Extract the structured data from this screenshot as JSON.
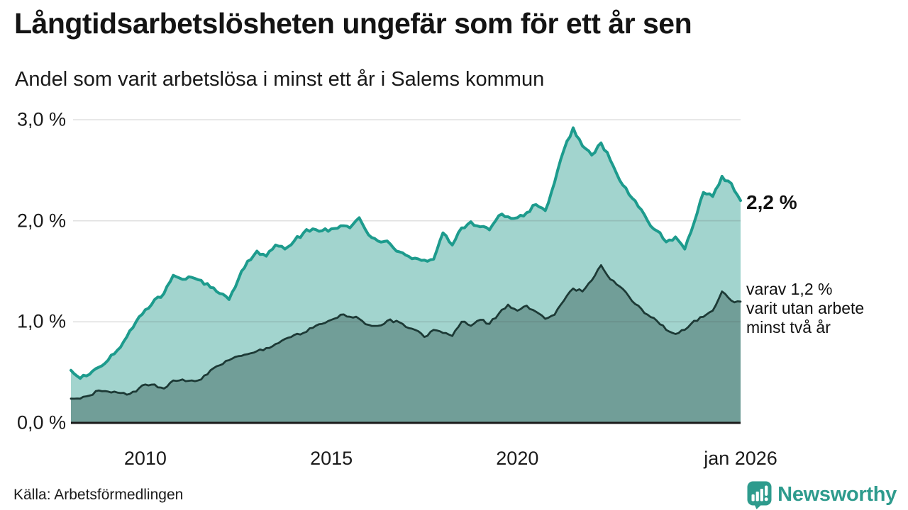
{
  "header": {
    "title": "Långtidsarbetslösheten ungefär som för ett år sen",
    "subtitle": "Andel som varit arbetslösa i minst ett år i Salems kommun"
  },
  "chart_data": {
    "type": "area",
    "title": "Långtidsarbetslösheten ungefär som för ett år sen",
    "subtitle": "Andel som varit arbetslösa i minst ett år i Salems kommun",
    "unit": "%",
    "x_start": 2008,
    "x_end": 2026,
    "x_step": 0.25,
    "ylim": [
      0,
      3.15
    ],
    "grid": "horizontal",
    "x_ticks": [
      {
        "year": 2010,
        "label": "2010"
      },
      {
        "year": 2015,
        "label": "2015"
      },
      {
        "year": 2020,
        "label": "2020"
      },
      {
        "year": 2026,
        "label": "jan 2026"
      }
    ],
    "y_ticks": [
      {
        "value": 3,
        "label": "3,0 %"
      },
      {
        "value": 2,
        "label": "2,0 %"
      },
      {
        "value": 1,
        "label": "1,0 %"
      },
      {
        "value": 0,
        "label": "0,0 %"
      }
    ],
    "series": [
      {
        "name": "Andel som varit arbetslösa i minst ett år",
        "line_color": "#1d9b8d",
        "fill_color": "#a2d4ce",
        "last_value_label": "2,2 %",
        "values": [
          0.52,
          0.44,
          0.48,
          0.55,
          0.62,
          0.72,
          0.85,
          1.0,
          1.12,
          1.22,
          1.28,
          1.46,
          1.42,
          1.44,
          1.41,
          1.34,
          1.28,
          1.22,
          1.42,
          1.6,
          1.7,
          1.65,
          1.76,
          1.72,
          1.8,
          1.88,
          1.92,
          1.9,
          1.92,
          1.95,
          1.93,
          2.03,
          1.86,
          1.8,
          1.8,
          1.7,
          1.66,
          1.63,
          1.61,
          1.62,
          1.88,
          1.76,
          1.93,
          1.99,
          1.94,
          1.91,
          2.05,
          2.04,
          2.03,
          2.08,
          2.16,
          2.1,
          2.38,
          2.7,
          2.92,
          2.74,
          2.65,
          2.77,
          2.6,
          2.4,
          2.26,
          2.14,
          2.0,
          1.9,
          1.79,
          1.84,
          1.72,
          1.98,
          2.28,
          2.24,
          2.44,
          2.37,
          2.2
        ]
      },
      {
        "name": "varav varit utan arbete minst två år",
        "line_color": "#1d3a36",
        "fill_color": "#719e98",
        "last_value_label": "varav 1,2 %",
        "values": [
          0.24,
          0.24,
          0.27,
          0.32,
          0.31,
          0.3,
          0.28,
          0.31,
          0.38,
          0.38,
          0.34,
          0.42,
          0.43,
          0.42,
          0.43,
          0.52,
          0.57,
          0.62,
          0.66,
          0.68,
          0.71,
          0.74,
          0.78,
          0.83,
          0.87,
          0.89,
          0.94,
          0.98,
          1.02,
          1.07,
          1.05,
          1.03,
          0.97,
          0.96,
          1.01,
          1.01,
          0.95,
          0.92,
          0.85,
          0.92,
          0.89,
          0.86,
          1.0,
          0.96,
          1.02,
          0.98,
          1.08,
          1.17,
          1.11,
          1.16,
          1.1,
          1.03,
          1.07,
          1.21,
          1.33,
          1.3,
          1.41,
          1.56,
          1.42,
          1.35,
          1.25,
          1.16,
          1.07,
          1.01,
          0.92,
          0.88,
          0.92,
          1.01,
          1.05,
          1.11,
          1.3,
          1.21,
          1.2
        ]
      }
    ],
    "annotations": {
      "end_label": "2,2 %",
      "sub_label_lines": [
        "varav 1,2 %",
        "varit utan arbete",
        "minst två år"
      ]
    }
  },
  "footer": {
    "source": "Källa: Arbetsförmedlingen",
    "brand": "Newsworthy"
  },
  "colors": {
    "brand_teal": "#2e9b8d",
    "gridline": "#444444",
    "axis_line": "#1a1a1a",
    "background": "#ffffff"
  }
}
